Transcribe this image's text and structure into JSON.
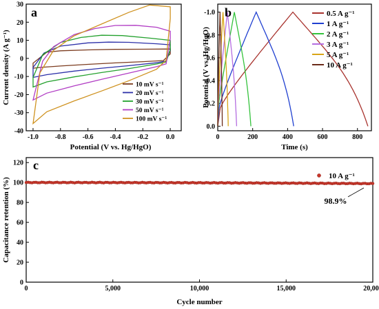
{
  "colors": {
    "s10": "#7b3b1e",
    "s20": "#2b2fa8",
    "s30": "#22a02c",
    "s50": "#b13cc4",
    "s100": "#cf9220",
    "g05": "#a8322d",
    "g1": "#1f3fd0",
    "g2": "#33c23b",
    "g3": "#b46de0",
    "g5": "#d8a516",
    "g10": "#6a2a18",
    "cycle": "#c7372b"
  },
  "chart_data": [
    {
      "type": "line",
      "panel": "a",
      "xlabel": "Potential (V vs. Hg/HgO)",
      "ylabel": "Current density (A g⁻¹)",
      "xlim": [
        -1.05,
        0.08
      ],
      "ylim": [
        -40,
        30
      ],
      "xticks": [
        -1.0,
        -0.8,
        -0.6,
        -0.4,
        -0.2,
        0.0
      ],
      "xtick_labels": [
        "-1.0",
        "-0.8",
        "-0.6",
        "-0.4",
        "-0.2",
        "0.0"
      ],
      "yticks": [
        -40,
        -30,
        -20,
        -10,
        0,
        10,
        20,
        30
      ],
      "ytick_labels": [
        "-40",
        "-30",
        "-20",
        "-10",
        "0",
        "10",
        "20",
        "30"
      ],
      "legend": "bottom-right",
      "grid": false,
      "series": [
        {
          "name": "10 mV s⁻¹",
          "color_key": "s10",
          "upper": [
            [
              -1.0,
              -2.6
            ],
            [
              -0.9,
              3.4
            ],
            [
              -0.8,
              4.2
            ],
            [
              -0.6,
              4.7
            ],
            [
              -0.4,
              5.0
            ],
            [
              -0.2,
              5.1
            ],
            [
              0.0,
              5.2
            ]
          ],
          "lower": [
            [
              0.0,
              2.5
            ],
            [
              -0.05,
              -1.2
            ],
            [
              -0.2,
              -1.8
            ],
            [
              -0.4,
              -2.5
            ],
            [
              -0.6,
              -3.3
            ],
            [
              -0.8,
              -4.2
            ],
            [
              -0.95,
              -5.0
            ],
            [
              -1.0,
              -5.4
            ]
          ]
        },
        {
          "name": "20 mV s⁻¹",
          "color_key": "s20",
          "upper": [
            [
              -1.0,
              -5.0
            ],
            [
              -0.92,
              3.0
            ],
            [
              -0.8,
              6.8
            ],
            [
              -0.6,
              8.6
            ],
            [
              -0.45,
              9.0
            ],
            [
              -0.3,
              8.9
            ],
            [
              -0.1,
              8.1
            ],
            [
              0.0,
              7.5
            ]
          ],
          "lower": [
            [
              0.0,
              4.5
            ],
            [
              -0.03,
              -1.5
            ],
            [
              -0.1,
              -2.4
            ],
            [
              -0.3,
              -4.0
            ],
            [
              -0.5,
              -5.4
            ],
            [
              -0.7,
              -7.0
            ],
            [
              -0.9,
              -9.0
            ],
            [
              -1.0,
              -10.5
            ]
          ]
        },
        {
          "name": "30 mV s⁻¹",
          "color_key": "s30",
          "upper": [
            [
              -1.0,
              -10.5
            ],
            [
              -0.93,
              2.0
            ],
            [
              -0.8,
              8.8
            ],
            [
              -0.65,
              11.6
            ],
            [
              -0.5,
              12.8
            ],
            [
              -0.35,
              12.6
            ],
            [
              -0.15,
              11.2
            ],
            [
              0.0,
              10.0
            ]
          ],
          "lower": [
            [
              0.0,
              5.0
            ],
            [
              -0.03,
              -2.0
            ],
            [
              -0.1,
              -3.1
            ],
            [
              -0.3,
              -5.6
            ],
            [
              -0.5,
              -7.8
            ],
            [
              -0.7,
              -10.2
            ],
            [
              -0.9,
              -13.0
            ],
            [
              -1.0,
              -15.8
            ]
          ]
        },
        {
          "name": "50 mV s⁻¹",
          "color_key": "s50",
          "upper": [
            [
              -1.0,
              -23.0
            ],
            [
              -0.93,
              -1.5
            ],
            [
              -0.85,
              6.5
            ],
            [
              -0.7,
              13.2
            ],
            [
              -0.55,
              16.5
            ],
            [
              -0.4,
              18.2
            ],
            [
              -0.25,
              18.3
            ],
            [
              -0.1,
              17.2
            ],
            [
              0.0,
              15.0
            ]
          ],
          "lower": [
            [
              0.0,
              11.0
            ],
            [
              -0.03,
              -3.0
            ],
            [
              -0.1,
              -4.6
            ],
            [
              -0.3,
              -8.1
            ],
            [
              -0.5,
              -11.6
            ],
            [
              -0.7,
              -15.2
            ],
            [
              -0.9,
              -19.2
            ],
            [
              -1.0,
              -23.0
            ]
          ]
        },
        {
          "name": "100 mV s⁻¹",
          "color_key": "s100",
          "upper": [
            [
              -1.0,
              -36.0
            ],
            [
              -0.95,
              -8.0
            ],
            [
              -0.85,
              4.5
            ],
            [
              -0.7,
              12.5
            ],
            [
              -0.5,
              19.0
            ],
            [
              -0.3,
              25.5
            ],
            [
              -0.15,
              29.5
            ],
            [
              0.0,
              28.5
            ]
          ],
          "lower": [
            [
              0.0,
              22.0
            ],
            [
              -0.03,
              -1.0
            ],
            [
              -0.1,
              -6.0
            ],
            [
              -0.3,
              -12.3
            ],
            [
              -0.5,
              -18.0
            ],
            [
              -0.7,
              -23.5
            ],
            [
              -0.9,
              -29.5
            ],
            [
              -1.0,
              -36.0
            ]
          ]
        }
      ]
    },
    {
      "type": "line",
      "panel": "b",
      "xlabel": "Time (s)",
      "ylabel": "Potential (V vs. Hg/HgO)",
      "xlim": [
        0,
        880
      ],
      "ylim": [
        0.04,
        -1.07
      ],
      "xticks": [
        0,
        200,
        400,
        600,
        800
      ],
      "xtick_labels": [
        "0",
        "200",
        "400",
        "600",
        "800"
      ],
      "yticks": [
        0.0,
        -0.2,
        -0.4,
        -0.6,
        -0.8,
        -1.0
      ],
      "ytick_labels": [
        "0.0",
        "-0.2",
        "-0.4",
        "-0.6",
        "-0.8",
        "-1.0"
      ],
      "legend": "right-outside",
      "grid": false,
      "series": [
        {
          "name": "0.5 A g⁻¹",
          "color_key": "g05",
          "charge_end": 430,
          "end": 860
        },
        {
          "name": "1 A g⁻¹",
          "color_key": "g1",
          "charge_end": 220,
          "end": 435
        },
        {
          "name": "2 A g⁻¹",
          "color_key": "g2",
          "charge_end": 95,
          "end": 190
        },
        {
          "name": "3 A g⁻¹",
          "color_key": "g3",
          "charge_end": 55,
          "end": 108
        },
        {
          "name": "5 A g⁻¹",
          "color_key": "g5",
          "charge_end": 30,
          "end": 60
        },
        {
          "name": "10 A g⁻¹",
          "color_key": "g10",
          "charge_end": 13,
          "end": 26
        }
      ]
    },
    {
      "type": "scatter",
      "panel": "c",
      "xlabel": "Cycle number",
      "ylabel": "Capacitance retention (%)",
      "xlim": [
        0,
        20000
      ],
      "ylim": [
        0,
        125
      ],
      "xticks": [
        0,
        5000,
        10000,
        15000,
        20000
      ],
      "xtick_labels": [
        "0",
        "5,000",
        "10,000",
        "15,000",
        "20,000"
      ],
      "yticks": [
        0,
        20,
        40,
        60,
        80,
        100,
        120
      ],
      "ytick_labels": [
        "0",
        "20",
        "40",
        "60",
        "80",
        "100",
        "120"
      ],
      "legend": "top-right",
      "grid": false,
      "series": [
        {
          "name": "10 A g⁻¹",
          "color_key": "cycle",
          "start": 100,
          "end": 98.9,
          "points": 180
        }
      ],
      "annotation": "98.9%"
    }
  ]
}
